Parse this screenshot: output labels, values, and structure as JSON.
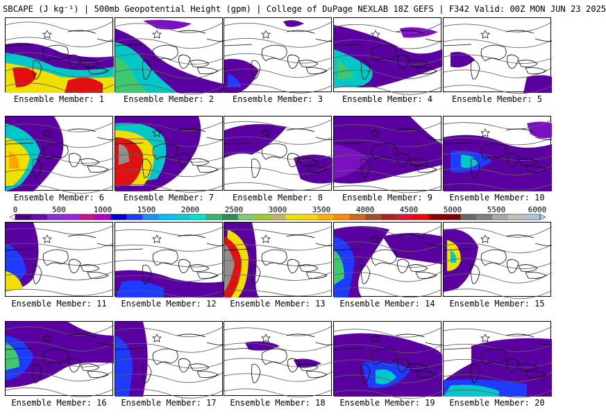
{
  "header": {
    "title": "SBCAPE (J kg⁻¹) | 500mb Geopotential Height (gpm) | College of DuPage NEXLAB 18Z GEFS | F342 Valid: 00Z MON JUN 23 2025"
  },
  "colorbar": {
    "ticks": [
      "0",
      "500",
      "1000",
      "1500",
      "2000",
      "2500",
      "3000",
      "3500",
      "4000",
      "4500",
      "5000",
      "5500",
      "6000"
    ],
    "colors": [
      "#ffffff",
      "#4b0082",
      "#6a0dad",
      "#8a2be2",
      "#a020f0",
      "#c71585",
      "#b000c8",
      "#0000cd",
      "#1e3cff",
      "#1e90ff",
      "#00bfff",
      "#00ced1",
      "#00e5cc",
      "#3cb371",
      "#2e8b57",
      "#7ccd7c",
      "#9acd32",
      "#bdb76b",
      "#e6e600",
      "#ffd700",
      "#ffb000",
      "#ff8c00",
      "#d2691e",
      "#a0522d",
      "#b22222",
      "#dc143c",
      "#ff0000",
      "#8b0000",
      "#800000",
      "#696969",
      "#808080",
      "#a9a9a9",
      "#c0c0c0",
      "#b0c4de",
      "#add8e6"
    ]
  },
  "members": [
    {
      "label": "Ensemble Member: 1"
    },
    {
      "label": "Ensemble Member: 2"
    },
    {
      "label": "Ensemble Member: 3"
    },
    {
      "label": "Ensemble Member: 4"
    },
    {
      "label": "Ensemble Member: 5"
    },
    {
      "label": "Ensemble Member: 6"
    },
    {
      "label": "Ensemble Member: 7"
    },
    {
      "label": "Ensemble Member: 8"
    },
    {
      "label": "Ensemble Member: 9"
    },
    {
      "label": "Ensemble Member: 10"
    },
    {
      "label": "Ensemble Member: 11"
    },
    {
      "label": "Ensemble Member: 12"
    },
    {
      "label": "Ensemble Member: 13"
    },
    {
      "label": "Ensemble Member: 14"
    },
    {
      "label": "Ensemble Member: 15"
    },
    {
      "label": "Ensemble Member: 16"
    },
    {
      "label": "Ensemble Member: 17"
    },
    {
      "label": "Ensemble Member: 18"
    },
    {
      "label": "Ensemble Member: 19"
    },
    {
      "label": "Ensemble Member: 20"
    }
  ]
}
